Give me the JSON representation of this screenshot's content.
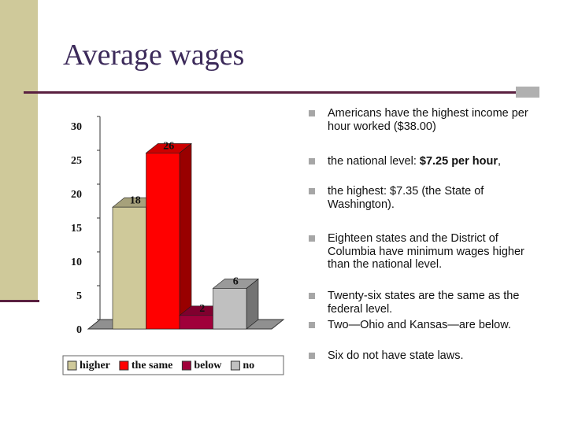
{
  "slide": {
    "title": "Average wages",
    "bullets": [
      [
        "Americans have the highest income per hour worked ($38.00)"
      ],
      [
        "the national level: ",
        "$7.25 per hour",
        ","
      ],
      [
        "the highest: $7.35 (the State of Washington)."
      ],
      [
        "Eighteen states and the District of Columbia have minimum wages higher than the national level."
      ],
      [
        "Twenty-six states are the same as the federal level."
      ],
      [
        "Two—Ohio and Kansas—are below."
      ],
      [
        "Six do not have state laws."
      ]
    ]
  },
  "chart_data": {
    "type": "bar3d",
    "categories": [
      null
    ],
    "series": [
      {
        "name": "higher",
        "color": "#cfc99a",
        "values": [
          18
        ]
      },
      {
        "name": "the same",
        "color": "#ff0000",
        "values": [
          26
        ]
      },
      {
        "name": "below",
        "color": "#a0003a",
        "values": [
          2
        ]
      },
      {
        "name": "no",
        "color": "#c0c0c0",
        "values": [
          6
        ]
      }
    ],
    "ylim": [
      0,
      30
    ],
    "yticks": [
      0,
      5,
      10,
      15,
      20,
      25,
      30
    ],
    "legend": "bottom"
  }
}
